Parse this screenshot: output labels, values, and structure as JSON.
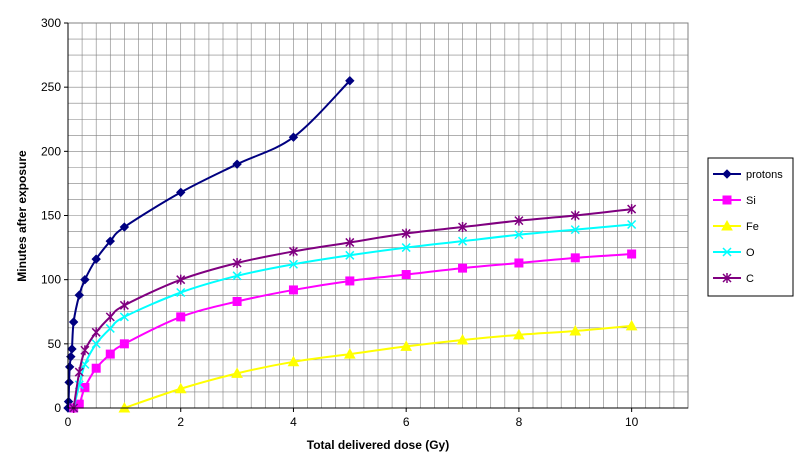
{
  "chart_data": {
    "type": "line",
    "title": "",
    "xlabel": "Total delivered dose (Gy)",
    "ylabel": "Minutes after exposure",
    "xlim": [
      0,
      11
    ],
    "ylim": [
      0,
      300
    ],
    "x_ticks": [
      0,
      2,
      4,
      6,
      8,
      10
    ],
    "y_ticks": [
      0,
      50,
      100,
      150,
      200,
      250,
      300
    ],
    "grid": true,
    "legend_position": "right",
    "series": [
      {
        "name": "protons",
        "color": "#000080",
        "marker": "diamond",
        "points": [
          [
            0,
            0
          ],
          [
            0.01,
            5
          ],
          [
            0.02,
            20
          ],
          [
            0.03,
            32
          ],
          [
            0.05,
            40
          ],
          [
            0.07,
            46
          ],
          [
            0.1,
            67
          ],
          [
            0.2,
            88
          ],
          [
            0.3,
            100
          ],
          [
            0.5,
            116
          ],
          [
            0.75,
            130
          ],
          [
            1,
            141
          ],
          [
            2,
            168
          ],
          [
            3,
            190
          ],
          [
            4,
            211
          ],
          [
            5,
            255
          ]
        ]
      },
      {
        "name": "Si",
        "color": "#ff00ff",
        "marker": "square",
        "points": [
          [
            0.1,
            0
          ],
          [
            0.2,
            3
          ],
          [
            0.3,
            16
          ],
          [
            0.5,
            31
          ],
          [
            0.75,
            42
          ],
          [
            1,
            50
          ],
          [
            2,
            71
          ],
          [
            3,
            83
          ],
          [
            4,
            92
          ],
          [
            5,
            99
          ],
          [
            6,
            104
          ],
          [
            7,
            109
          ],
          [
            8,
            113
          ],
          [
            9,
            117
          ],
          [
            10,
            120
          ]
        ]
      },
      {
        "name": "Fe",
        "color": "#ffff00",
        "marker": "triangle",
        "points": [
          [
            1,
            0
          ],
          [
            2,
            15
          ],
          [
            3,
            27
          ],
          [
            4,
            36
          ],
          [
            5,
            42
          ],
          [
            6,
            48
          ],
          [
            7,
            53
          ],
          [
            8,
            57
          ],
          [
            9,
            60
          ],
          [
            10,
            64
          ]
        ]
      },
      {
        "name": "O",
        "color": "#00ffff",
        "marker": "x",
        "points": [
          [
            0.1,
            0
          ],
          [
            0.2,
            18
          ],
          [
            0.3,
            34
          ],
          [
            0.5,
            50
          ],
          [
            0.75,
            62
          ],
          [
            1,
            71
          ],
          [
            2,
            90
          ],
          [
            3,
            103
          ],
          [
            4,
            112
          ],
          [
            5,
            119
          ],
          [
            6,
            125
          ],
          [
            7,
            130
          ],
          [
            8,
            135
          ],
          [
            9,
            139
          ],
          [
            10,
            143
          ]
        ]
      },
      {
        "name": "C",
        "color": "#800080",
        "marker": "star",
        "points": [
          [
            0.1,
            0
          ],
          [
            0.2,
            28
          ],
          [
            0.3,
            45
          ],
          [
            0.5,
            59
          ],
          [
            0.75,
            71
          ],
          [
            1,
            80
          ],
          [
            2,
            100
          ],
          [
            3,
            113
          ],
          [
            4,
            122
          ],
          [
            5,
            129
          ],
          [
            6,
            136
          ],
          [
            7,
            141
          ],
          [
            8,
            146
          ],
          [
            9,
            150
          ],
          [
            10,
            155
          ]
        ]
      }
    ]
  }
}
